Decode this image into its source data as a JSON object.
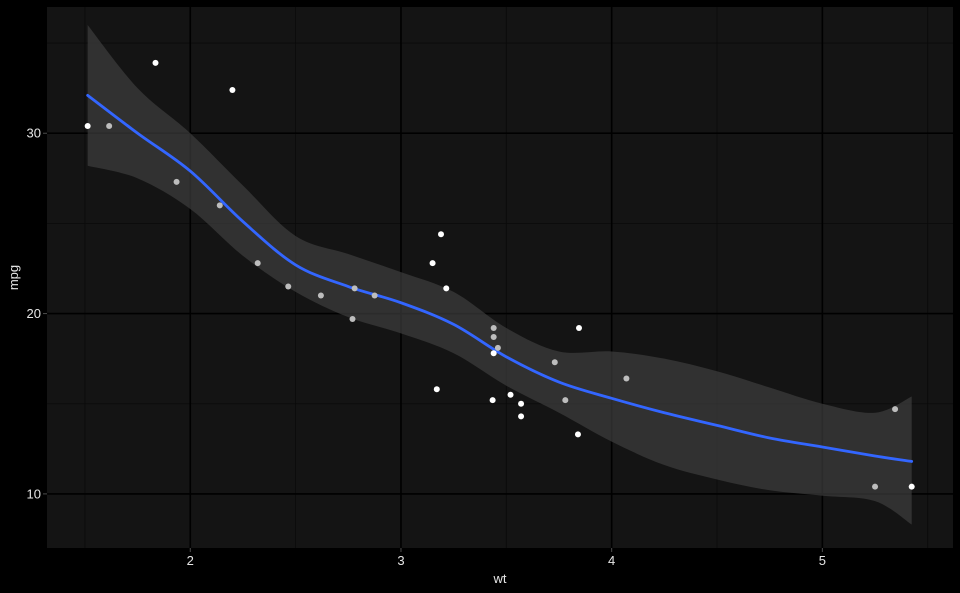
{
  "chart_data": {
    "type": "scatter",
    "title": "",
    "xlabel": "wt",
    "ylabel": "mpg",
    "xlim": [
      1.32,
      5.62
    ],
    "ylim": [
      7.0,
      37.0
    ],
    "x_ticks": [
      2,
      3,
      4,
      5
    ],
    "x_tick_labels": [
      "2",
      "3",
      "4",
      "5"
    ],
    "y_ticks": [
      10,
      20,
      30
    ],
    "y_tick_labels": [
      "10",
      "20",
      "30"
    ],
    "x_minor_ticks": [
      1.5,
      2.5,
      3.5,
      4.5,
      5.5
    ],
    "y_minor_ticks": [
      15,
      25,
      35
    ],
    "grid": true,
    "colors": {
      "page_background": "#000000",
      "panel_background": "#141414",
      "grid_major": "#000000",
      "grid_minor": "#0a0a0a",
      "smooth_line": "#3366ff",
      "ribbon": "#3d3d3d",
      "points_bright": "#ffffff",
      "points_dim": "#bdbdbd"
    },
    "points": [
      {
        "x": 1.513,
        "y": 30.4,
        "tone": "bright"
      },
      {
        "x": 1.615,
        "y": 30.4,
        "tone": "dim"
      },
      {
        "x": 1.835,
        "y": 33.9,
        "tone": "bright"
      },
      {
        "x": 1.935,
        "y": 27.3,
        "tone": "dim"
      },
      {
        "x": 2.14,
        "y": 26.0,
        "tone": "dim"
      },
      {
        "x": 2.2,
        "y": 32.4,
        "tone": "bright"
      },
      {
        "x": 2.32,
        "y": 22.8,
        "tone": "dim"
      },
      {
        "x": 2.465,
        "y": 21.5,
        "tone": "dim"
      },
      {
        "x": 2.62,
        "y": 21.0,
        "tone": "dim"
      },
      {
        "x": 2.77,
        "y": 19.7,
        "tone": "dim"
      },
      {
        "x": 2.78,
        "y": 21.4,
        "tone": "dim"
      },
      {
        "x": 2.875,
        "y": 21.0,
        "tone": "dim"
      },
      {
        "x": 3.15,
        "y": 22.8,
        "tone": "bright"
      },
      {
        "x": 3.17,
        "y": 15.8,
        "tone": "bright"
      },
      {
        "x": 3.19,
        "y": 24.4,
        "tone": "bright"
      },
      {
        "x": 3.215,
        "y": 21.4,
        "tone": "bright"
      },
      {
        "x": 3.435,
        "y": 15.2,
        "tone": "bright"
      },
      {
        "x": 3.44,
        "y": 18.7,
        "tone": "dim"
      },
      {
        "x": 3.44,
        "y": 19.2,
        "tone": "dim"
      },
      {
        "x": 3.44,
        "y": 17.8,
        "tone": "bright"
      },
      {
        "x": 3.46,
        "y": 18.1,
        "tone": "dim"
      },
      {
        "x": 3.52,
        "y": 15.5,
        "tone": "bright"
      },
      {
        "x": 3.57,
        "y": 15.0,
        "tone": "bright"
      },
      {
        "x": 3.57,
        "y": 14.3,
        "tone": "bright"
      },
      {
        "x": 3.73,
        "y": 17.3,
        "tone": "dim"
      },
      {
        "x": 3.78,
        "y": 15.2,
        "tone": "dim"
      },
      {
        "x": 3.84,
        "y": 13.3,
        "tone": "bright"
      },
      {
        "x": 3.845,
        "y": 19.2,
        "tone": "bright"
      },
      {
        "x": 4.07,
        "y": 16.4,
        "tone": "dim"
      },
      {
        "x": 5.25,
        "y": 10.4,
        "tone": "dim"
      },
      {
        "x": 5.345,
        "y": 14.7,
        "tone": "dim"
      },
      {
        "x": 5.424,
        "y": 10.4,
        "tone": "bright"
      }
    ],
    "smooth": {
      "method": "loess",
      "x": [
        1.513,
        1.75,
        2.0,
        2.25,
        2.5,
        2.75,
        3.0,
        3.25,
        3.5,
        3.75,
        4.0,
        4.25,
        4.5,
        4.75,
        5.0,
        5.25,
        5.424
      ],
      "y": [
        32.1,
        30.0,
        27.9,
        25.1,
        22.7,
        21.5,
        20.6,
        19.4,
        17.6,
        16.2,
        15.3,
        14.5,
        13.8,
        13.1,
        12.6,
        12.1,
        11.8
      ],
      "lower": [
        28.2,
        27.5,
        25.8,
        23.2,
        21.2,
        19.8,
        18.9,
        17.8,
        16.0,
        14.5,
        12.9,
        11.6,
        10.8,
        10.2,
        9.9,
        9.6,
        8.3
      ],
      "upper": [
        36.0,
        32.5,
        30.0,
        27.1,
        24.3,
        23.3,
        22.3,
        21.2,
        19.2,
        17.9,
        17.9,
        17.5,
        16.8,
        15.9,
        15.0,
        14.5,
        15.4
      ]
    }
  }
}
